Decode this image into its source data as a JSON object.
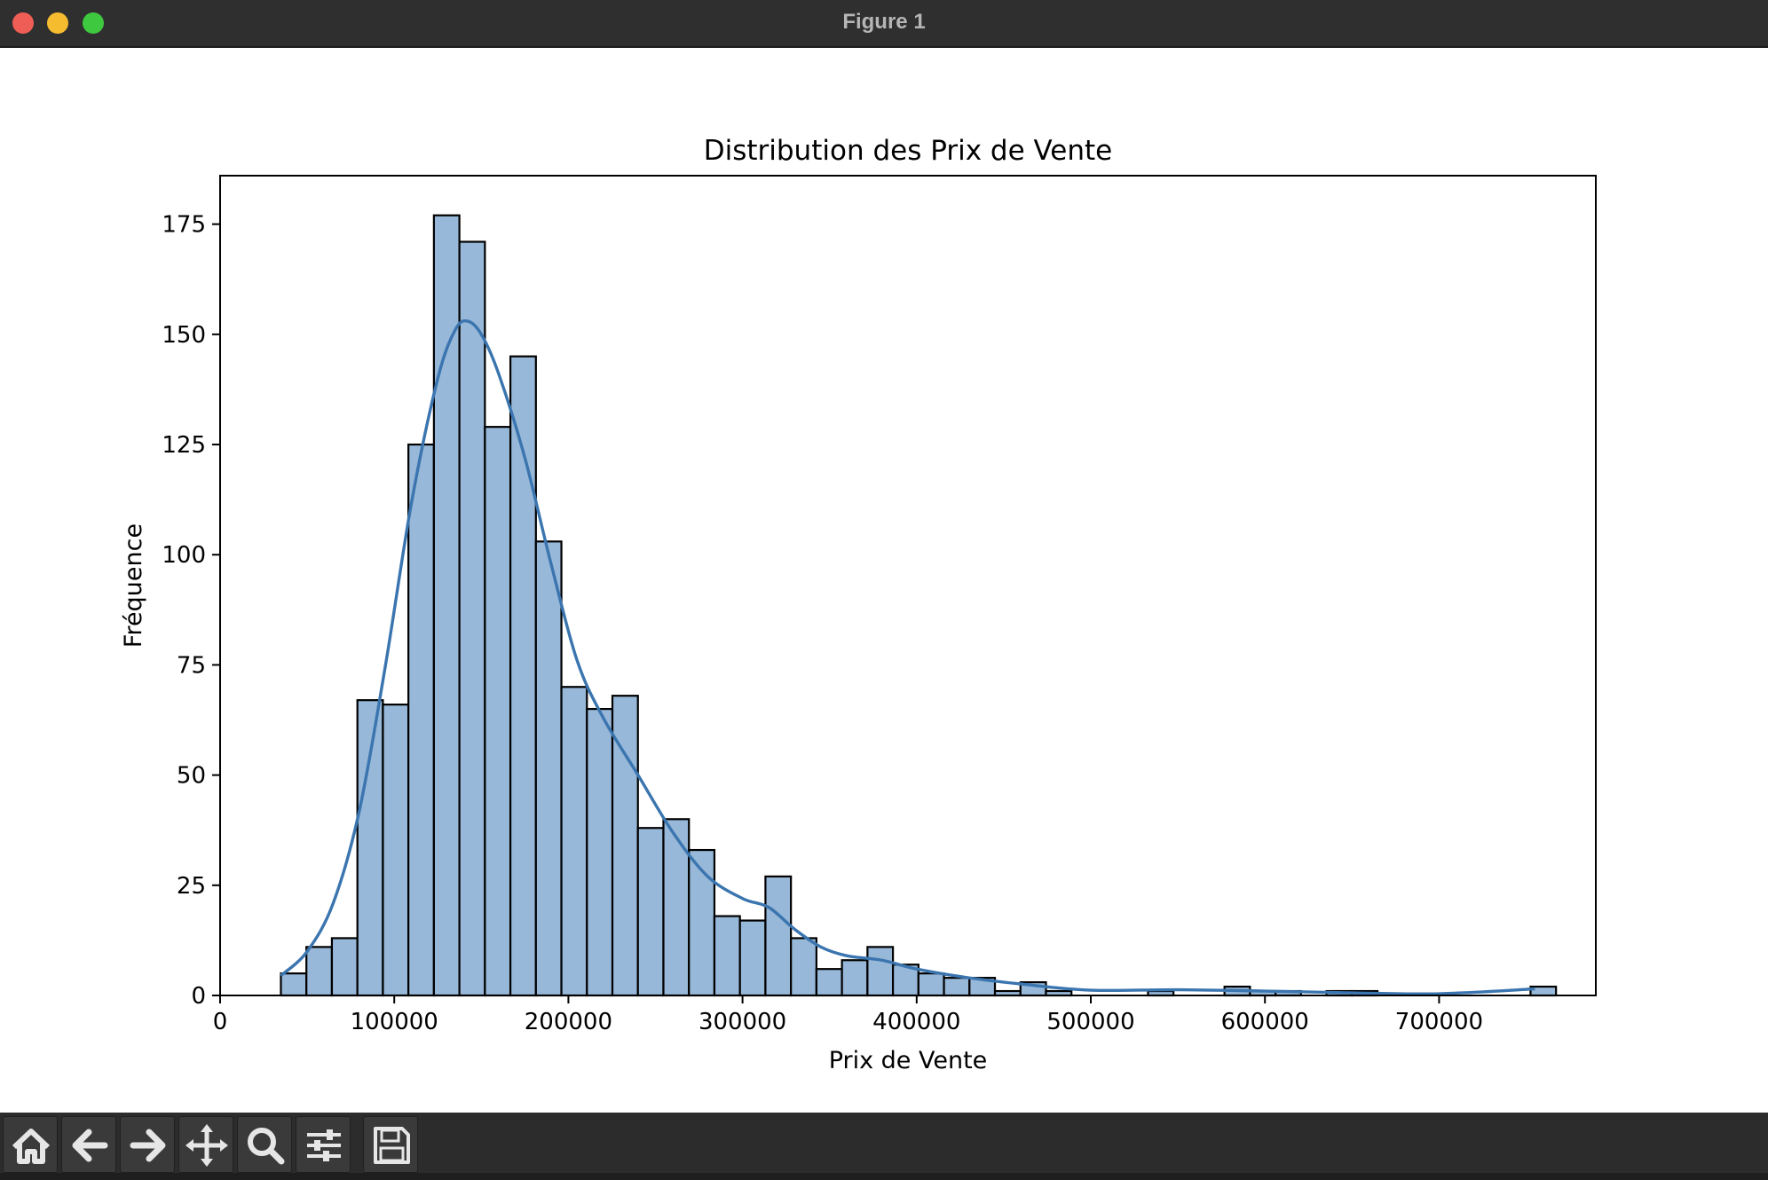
{
  "window": {
    "title": "Figure 1",
    "toolbar_icons": [
      "home-icon",
      "back-arrow-icon",
      "forward-arrow-icon",
      "pan-icon",
      "zoom-icon",
      "configure-subplots-icon",
      "save-icon"
    ]
  },
  "chart_data": {
    "type": "bar",
    "title": "Distribution des Prix de Vente",
    "xlabel": "Prix de Vente",
    "ylabel": "Fréquence",
    "xlim": [
      0,
      790000
    ],
    "ylim": [
      0,
      186
    ],
    "xticks": [
      0,
      100000,
      200000,
      300000,
      400000,
      500000,
      600000,
      700000
    ],
    "yticks": [
      0,
      25,
      50,
      75,
      100,
      125,
      150,
      175
    ],
    "bin_start": 34900,
    "bin_width": 14645,
    "counts": [
      5,
      11,
      13,
      67,
      66,
      125,
      177,
      171,
      129,
      145,
      103,
      70,
      65,
      68,
      38,
      40,
      33,
      18,
      17,
      27,
      13,
      6,
      8,
      11,
      7,
      5,
      4,
      4,
      1,
      3,
      1,
      0,
      0,
      0,
      1,
      0,
      0,
      2,
      1,
      1,
      0,
      1,
      1,
      0,
      0,
      0,
      0,
      0,
      0,
      2
    ],
    "kde_curve": {
      "x": [
        34900,
        50000,
        65000,
        80000,
        95000,
        110000,
        125000,
        135000,
        142000,
        150000,
        160000,
        175000,
        190000,
        205000,
        220000,
        240000,
        260000,
        280000,
        300000,
        315000,
        330000,
        345000,
        360000,
        380000,
        400000,
        430000,
        460000,
        500000,
        550000,
        600000,
        650000,
        700000,
        755000
      ],
      "y": [
        4.5,
        10,
        21,
        42,
        75,
        112,
        140,
        151,
        153,
        150,
        141,
        122,
        98,
        76,
        63,
        50,
        37,
        27,
        22,
        20,
        15,
        11,
        9,
        8,
        6,
        4,
        2.6,
        1.2,
        1.3,
        1.0,
        0.6,
        0.4,
        1.5
      ],
      "color": "#3b75af"
    },
    "bar_fill": "#97b8d8",
    "bar_edge": "#000000",
    "grid": false,
    "legend": "none"
  }
}
